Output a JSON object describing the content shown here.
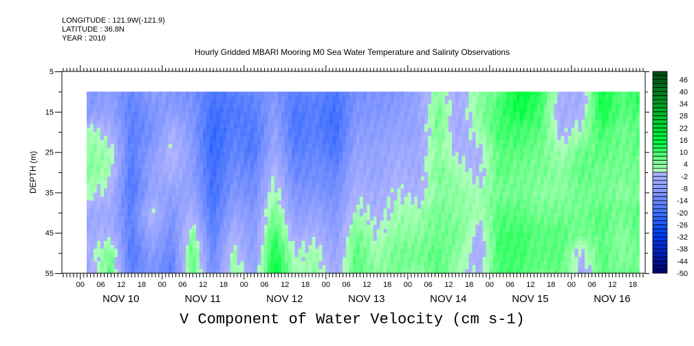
{
  "header": {
    "longitude": "LONGITUDE : 121.9W(-121.9)",
    "latitude": "LATITUDE : 36.8N",
    "year": "YEAR : 2010",
    "title": "Hourly Gridded MBARI Mooring M0 Sea Water Temperature and Salinity Observations"
  },
  "chart_data": {
    "type": "heatmap",
    "title": "Hourly Gridded MBARI Mooring M0 Sea Water Temperature and Salinity Observations",
    "xlabel": "V Component of Water Velocity (cm s-1)",
    "ylabel": "DEPTH (m)",
    "ylim": [
      5,
      55
    ],
    "y_inverted": true,
    "y_ticks": [
      "5",
      "15",
      "25",
      "35",
      "45",
      "55"
    ],
    "x_hour_ticks": [
      "00",
      "06",
      "12",
      "18"
    ],
    "x_day_labels": [
      "NOV 10",
      "NOV 11",
      "NOV 12",
      "NOV 13",
      "NOV 14",
      "NOV 15",
      "NOV 16"
    ],
    "x_range_hours_from_nov10_00": [
      -5.3,
      165.7
    ],
    "data_time_range_hours": [
      2,
      164
    ],
    "depths": [
      10,
      15,
      20,
      25,
      30,
      35,
      40,
      45,
      50,
      55
    ],
    "time_hours": [
      3,
      9,
      15,
      21,
      27,
      33,
      39,
      45,
      51,
      57,
      63,
      69,
      75,
      81,
      87,
      93,
      99,
      105,
      111,
      117,
      123,
      129,
      135,
      141,
      147,
      153,
      159,
      164
    ],
    "values_by_time": [
      [
        -10,
        -8,
        2,
        4,
        4,
        2,
        -4,
        -4,
        -2,
        -4
      ],
      [
        -8,
        -6,
        -2,
        2,
        2,
        -2,
        -4,
        -2,
        6,
        8
      ],
      [
        -14,
        -16,
        -16,
        -16,
        -18,
        -18,
        -16,
        -16,
        -18,
        -16
      ],
      [
        -8,
        -10,
        -12,
        -8,
        -6,
        -6,
        0,
        -4,
        -8,
        -10
      ],
      [
        -10,
        -8,
        -2,
        0,
        -2,
        -6,
        -10,
        -12,
        -14,
        -16
      ],
      [
        -12,
        -10,
        -10,
        -8,
        -8,
        -6,
        -2,
        4,
        8,
        8
      ],
      [
        -18,
        -20,
        -22,
        -22,
        -20,
        -20,
        -18,
        -16,
        -14,
        -12
      ],
      [
        -16,
        -18,
        -16,
        -14,
        -12,
        -10,
        -6,
        -2,
        2,
        4
      ],
      [
        -14,
        -16,
        -18,
        -18,
        -14,
        -12,
        -10,
        -8,
        -8,
        -6
      ],
      [
        -10,
        -8,
        -6,
        -4,
        0,
        2,
        6,
        10,
        14,
        16
      ],
      [
        -16,
        -18,
        -18,
        -16,
        -14,
        -10,
        -8,
        -4,
        0,
        2
      ],
      [
        -14,
        -16,
        -16,
        -14,
        -12,
        -10,
        -6,
        -2,
        2,
        4
      ],
      [
        -18,
        -20,
        -20,
        -18,
        -14,
        -12,
        -10,
        -8,
        -6,
        -4
      ],
      [
        -12,
        -10,
        -8,
        -6,
        -4,
        -2,
        2,
        6,
        8,
        8
      ],
      [
        -10,
        -10,
        -8,
        -6,
        -6,
        -4,
        -2,
        0,
        2,
        4
      ],
      [
        -10,
        -8,
        -6,
        -4,
        -2,
        0,
        2,
        4,
        6,
        6
      ],
      [
        -6,
        -6,
        -6,
        -4,
        -4,
        -2,
        2,
        4,
        6,
        4
      ],
      [
        4,
        6,
        6,
        4,
        6,
        4,
        6,
        6,
        8,
        8
      ],
      [
        -4,
        -4,
        -4,
        -2,
        2,
        4,
        4,
        6,
        4,
        2
      ],
      [
        4,
        4,
        2,
        -2,
        -2,
        2,
        2,
        -2,
        -4,
        -2
      ],
      [
        8,
        10,
        10,
        8,
        8,
        6,
        8,
        10,
        10,
        10
      ],
      [
        16,
        14,
        10,
        8,
        6,
        6,
        8,
        10,
        10,
        10
      ],
      [
        12,
        10,
        8,
        6,
        6,
        4,
        6,
        8,
        8,
        6
      ],
      [
        -2,
        -4,
        -2,
        2,
        4,
        4,
        6,
        8,
        8,
        8
      ],
      [
        -4,
        -2,
        2,
        6,
        8,
        6,
        6,
        6,
        -2,
        -4
      ],
      [
        14,
        14,
        10,
        8,
        6,
        6,
        8,
        8,
        8,
        8
      ],
      [
        8,
        8,
        6,
        6,
        6,
        4,
        6,
        4,
        4,
        6
      ],
      [
        12,
        10,
        8,
        8,
        6,
        6,
        8,
        8,
        6,
        8
      ]
    ],
    "colorbar": {
      "min": -50,
      "max": 50,
      "step": 2,
      "labels": [
        "46",
        "40",
        "34",
        "28",
        "22",
        "16",
        "10",
        "4",
        "-2",
        "-8",
        "-14",
        "-20",
        "-26",
        "-32",
        "-38",
        "-44",
        "-50"
      ]
    }
  }
}
